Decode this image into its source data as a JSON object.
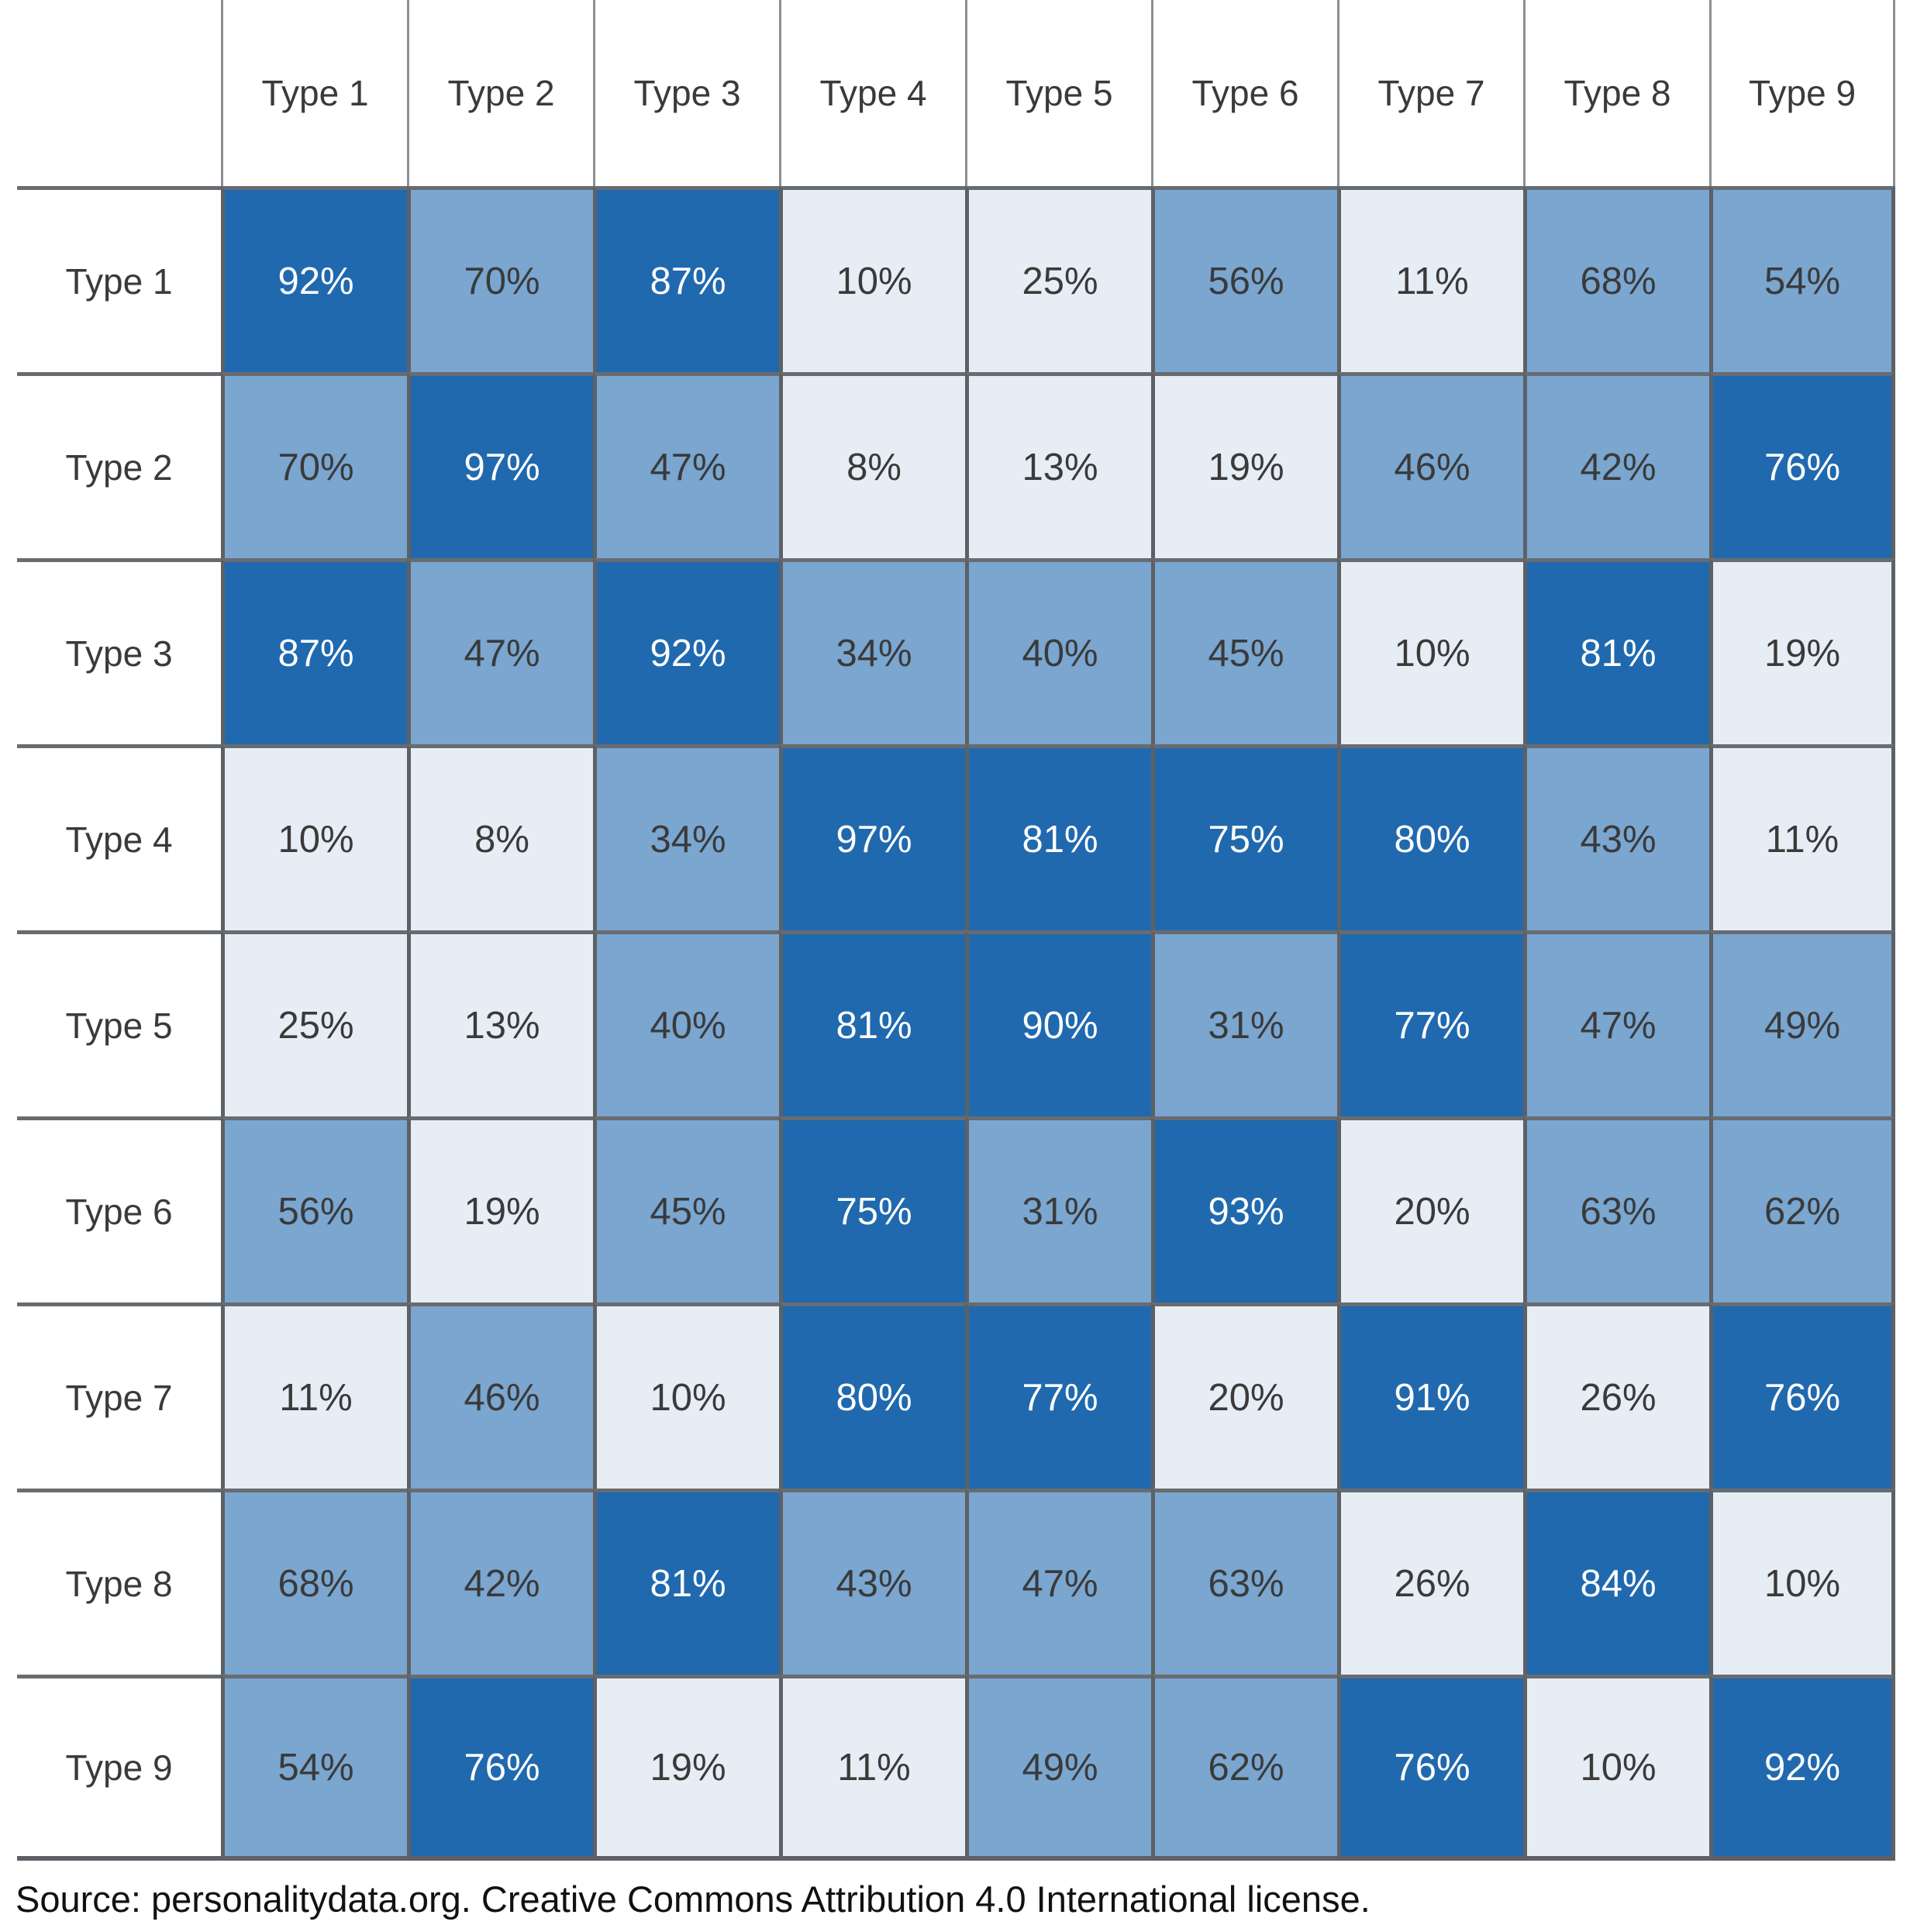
{
  "chart_data": {
    "type": "heatmap",
    "title": "",
    "row_labels": [
      "Type 1",
      "Type 2",
      "Type 3",
      "Type 4",
      "Type 5",
      "Type 6",
      "Type 7",
      "Type 8",
      "Type 9"
    ],
    "col_labels": [
      "Type 1",
      "Type 2",
      "Type 3",
      "Type 4",
      "Type 5",
      "Type 6",
      "Type 7",
      "Type 8",
      "Type 9"
    ],
    "values": [
      [
        92,
        70,
        87,
        10,
        25,
        56,
        11,
        68,
        54
      ],
      [
        70,
        97,
        47,
        8,
        13,
        19,
        46,
        42,
        76
      ],
      [
        87,
        47,
        92,
        34,
        40,
        45,
        10,
        81,
        19
      ],
      [
        10,
        8,
        34,
        97,
        81,
        75,
        80,
        43,
        11
      ],
      [
        25,
        13,
        40,
        81,
        90,
        31,
        77,
        47,
        49
      ],
      [
        56,
        19,
        45,
        75,
        31,
        93,
        20,
        63,
        62
      ],
      [
        11,
        46,
        10,
        80,
        77,
        20,
        91,
        26,
        76
      ],
      [
        68,
        42,
        81,
        43,
        47,
        63,
        26,
        84,
        10
      ],
      [
        54,
        76,
        19,
        11,
        49,
        62,
        76,
        10,
        92
      ]
    ],
    "value_suffix": "%",
    "colors": {
      "low": "#e7edf4",
      "mid": "#7aa6d0",
      "high": "#2069ae",
      "text_dark": "#3a3a3a",
      "text_light": "#ffffff"
    },
    "thresholds": {
      "mid_min": 30,
      "high_min": 73
    },
    "legend": "none",
    "grid": "on"
  },
  "footer": {
    "text": "Source: personalitydata.org. Creative Commons Attribution 4.0 International license."
  }
}
